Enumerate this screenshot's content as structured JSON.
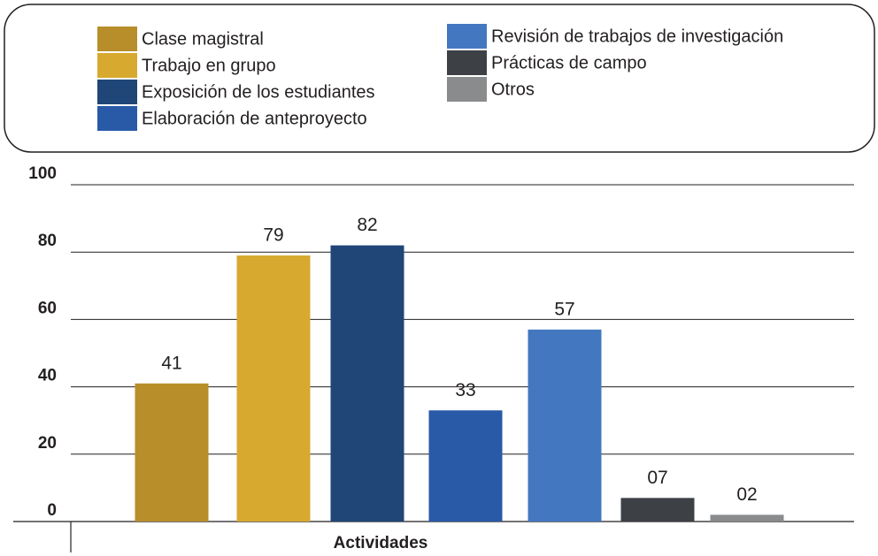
{
  "chart_data": {
    "type": "bar",
    "x_label": "Actividades",
    "categories": [
      "Clase magistral",
      "Trabajo en grupo",
      "Exposición de los estudiantes",
      "Elaboración de anteproyecto",
      "Revisión de trabajos de investigación",
      "Prácticas de campo",
      "Otros"
    ],
    "values": [
      41,
      79,
      82,
      33,
      57,
      7,
      2
    ],
    "value_labels": [
      "41",
      "79",
      "82",
      "33",
      "57",
      "07",
      "02"
    ],
    "colors": [
      "#b88e2a",
      "#d8a92f",
      "#1f4677",
      "#285aa8",
      "#4378c0",
      "#3d4045",
      "#8a8b8c"
    ],
    "ylim": [
      0,
      100
    ],
    "yticks": [
      0,
      20,
      40,
      60,
      80,
      100
    ],
    "grid": true,
    "legend": "top"
  }
}
